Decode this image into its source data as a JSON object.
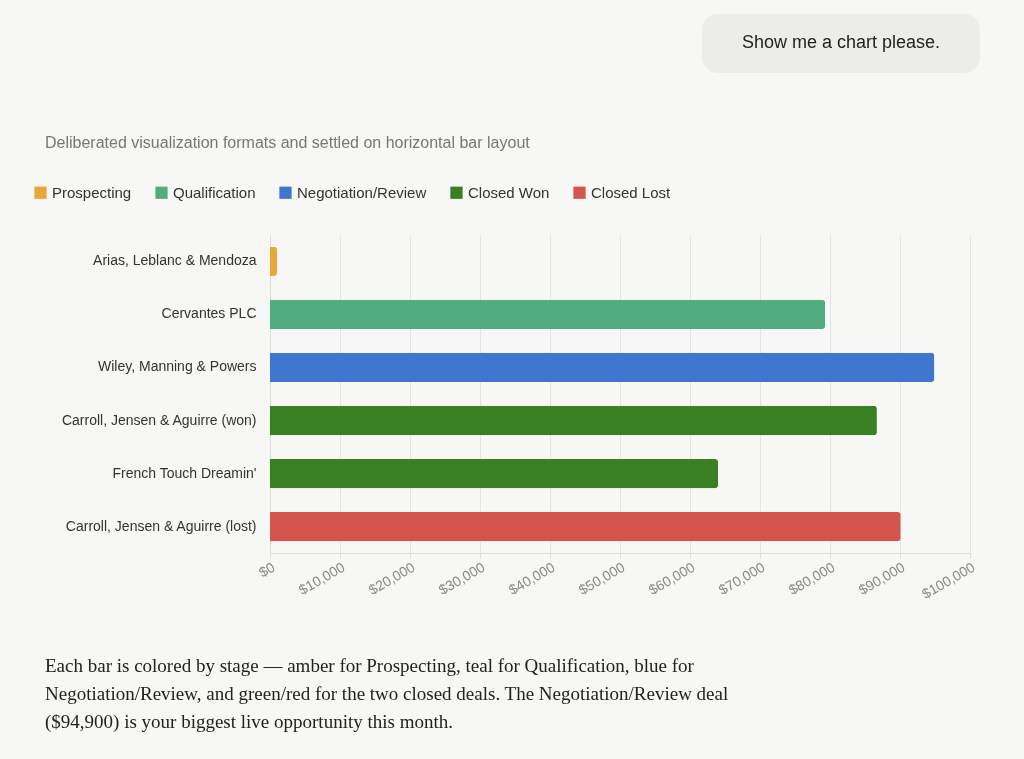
{
  "chart_data": {
    "type": "bar",
    "orientation": "horizontal",
    "subtitle": "Deliberated visualization formats and settled on horizontal bar layout",
    "categories": [
      "Arias, Leblanc & Mendoza",
      "Cervantes PLC",
      "Wiley, Manning & Powers",
      "Carroll, Jensen & Aguirre (won)",
      "French Touch Dreamin'",
      "Carroll, Jensen & Aguirre (lost)"
    ],
    "series": [
      {
        "name": "Prospecting",
        "color": "#e8a838",
        "values": [
          1000,
          null,
          null,
          null,
          null,
          null
        ]
      },
      {
        "name": "Qualification",
        "color": "#52ad7e",
        "values": [
          null,
          79300,
          null,
          null,
          null,
          null
        ]
      },
      {
        "name": "Negotiation/Review",
        "color": "#3f76d0",
        "values": [
          null,
          null,
          94900,
          null,
          null,
          null
        ]
      },
      {
        "name": "Closed Won",
        "color": "#3a7f22",
        "values": [
          null,
          null,
          null,
          86700,
          64000,
          null
        ]
      },
      {
        "name": "Closed Lost",
        "color": "#d4554e",
        "values": [
          null,
          null,
          null,
          null,
          null,
          90100
        ]
      }
    ],
    "xlim": [
      0,
      100000
    ],
    "xticks": [
      {
        "value": 0,
        "label": "$0"
      },
      {
        "value": 10000,
        "label": "$10,000"
      },
      {
        "value": 20000,
        "label": "$20,000"
      },
      {
        "value": 30000,
        "label": "$30,000"
      },
      {
        "value": 40000,
        "label": "$40,000"
      },
      {
        "value": 50000,
        "label": "$50,000"
      },
      {
        "value": 60000,
        "label": "$60,000"
      },
      {
        "value": 70000,
        "label": "$70,000"
      },
      {
        "value": 80000,
        "label": "$80,000"
      },
      {
        "value": 90000,
        "label": "$90,000"
      },
      {
        "value": 100000,
        "label": "$100,000"
      }
    ],
    "grid": "x",
    "legend": "top left",
    "annotations": [
      "Show me a chart please.",
      "Each bar is colored by stage — amber for Prospecting, teal for Qualification, blue for Negotiation/Review, and green/red for the two closed deals. The Negotiation/Review deal ($94,900) is your biggest live opportunity this month."
    ]
  }
}
